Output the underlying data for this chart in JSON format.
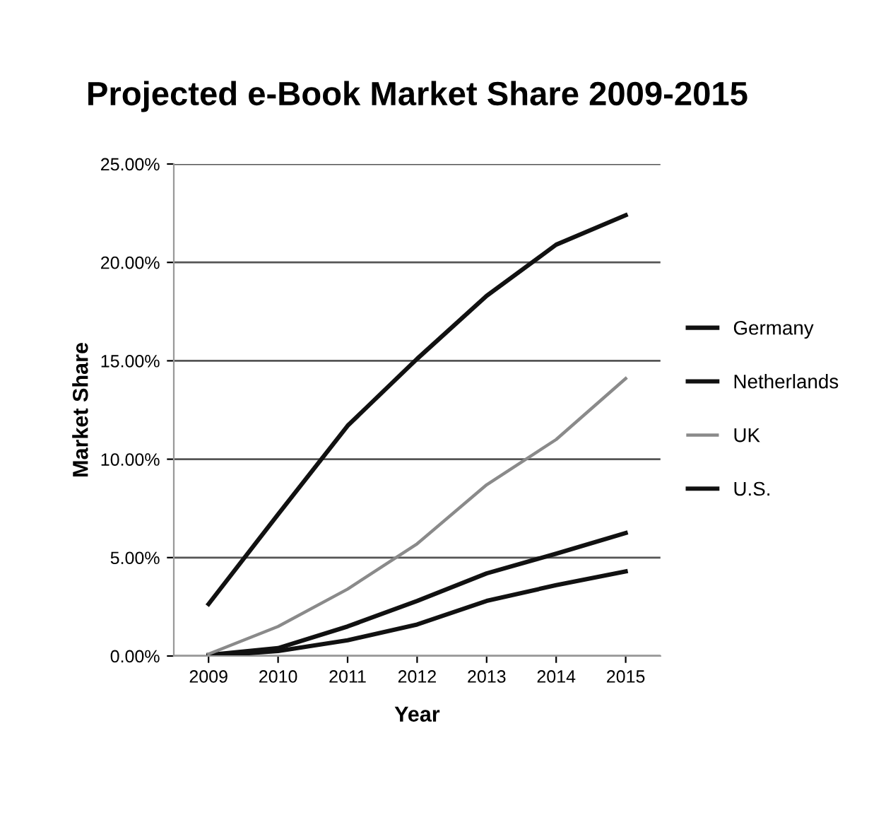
{
  "chart_data": {
    "type": "line",
    "title": "Projected e-Book Market Share 2009-2015",
    "xlabel": "Year",
    "ylabel": "Market Share",
    "categories": [
      "2009",
      "2010",
      "2011",
      "2012",
      "2013",
      "2014",
      "2015"
    ],
    "series": [
      {
        "name": "Germany",
        "color": "#111111",
        "values": [
          0.05,
          0.4,
          1.5,
          2.8,
          4.2,
          5.2,
          6.25
        ]
      },
      {
        "name": "Netherlands",
        "color": "#111111",
        "values": [
          0.0,
          0.25,
          0.8,
          1.6,
          2.8,
          3.6,
          4.3
        ]
      },
      {
        "name": "UK",
        "color": "#8a8a8a",
        "values": [
          0.1,
          1.5,
          3.4,
          5.7,
          8.7,
          11.0,
          14.1
        ]
      },
      {
        "name": "U.S.",
        "color": "#111111",
        "values": [
          2.64,
          7.2,
          11.7,
          15.1,
          18.3,
          20.9,
          22.4
        ]
      }
    ],
    "ylim": [
      0,
      25
    ],
    "yticks": [
      {
        "value": 0,
        "label": "0.00%"
      },
      {
        "value": 5,
        "label": "5.00%"
      },
      {
        "value": 10,
        "label": "10.00%"
      },
      {
        "value": 15,
        "label": "15.00%"
      },
      {
        "value": 20,
        "label": "20.00%"
      },
      {
        "value": 25,
        "label": "25.00%"
      }
    ],
    "grid": "y",
    "legend": "right",
    "marker": "none",
    "line_style": "solid"
  }
}
